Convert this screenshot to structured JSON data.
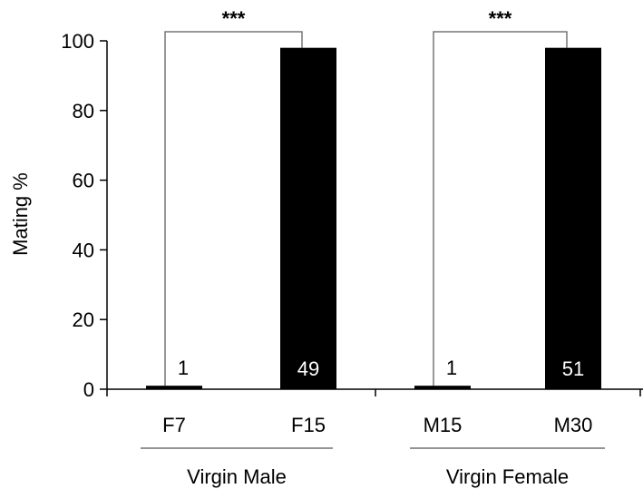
{
  "chart_data": {
    "type": "bar",
    "title": "",
    "ylabel": "Mating %",
    "xlabel": "",
    "ylim": [
      0,
      100
    ],
    "yticks": [
      0,
      20,
      40,
      60,
      80,
      100
    ],
    "categories": [
      "F7",
      "F15",
      "M15",
      "M30"
    ],
    "values": [
      1,
      98,
      1,
      98
    ],
    "sample_sizes": [
      "1",
      "49",
      "1",
      "51"
    ],
    "groups": [
      {
        "label": "Virgin Male",
        "categories": [
          "F7",
          "F15"
        ]
      },
      {
        "label": "Virgin Female",
        "categories": [
          "M15",
          "M30"
        ]
      }
    ],
    "significance": [
      {
        "from": "F7",
        "to": "F15",
        "label": "***"
      },
      {
        "from": "M15",
        "to": "M30",
        "label": "***"
      }
    ],
    "bar_color": "#000000",
    "grid": false
  }
}
